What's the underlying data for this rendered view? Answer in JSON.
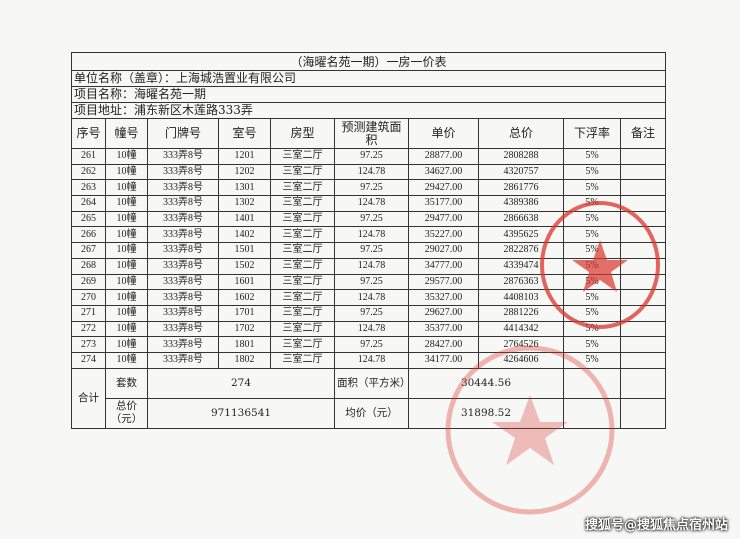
{
  "title": "（海曜名苑一期）一房一价表",
  "company": "单位名称（盖章）：上海城浩置业有限公司",
  "project": "项目名称：海曜名苑一期",
  "address": "项目地址：浦东新区木莲路333弄",
  "headers": [
    "序号",
    "幢号",
    "门牌号",
    "室号",
    "房型",
    "预测建筑面积",
    "单价",
    "总价",
    "下浮率",
    "备注"
  ],
  "rows": [
    [
      "261",
      "10幢",
      "333弄8号",
      "1201",
      "三室二厅",
      "97.25",
      "28877.00",
      "2808288",
      "5%",
      ""
    ],
    [
      "262",
      "10幢",
      "333弄8号",
      "1202",
      "三室二厅",
      "124.78",
      "34627.00",
      "4320757",
      "5%",
      ""
    ],
    [
      "263",
      "10幢",
      "333弄8号",
      "1301",
      "三室二厅",
      "97.25",
      "29427.00",
      "2861776",
      "5%",
      ""
    ],
    [
      "264",
      "10幢",
      "333弄8号",
      "1302",
      "三室二厅",
      "124.78",
      "35177.00",
      "4389386",
      "5%",
      ""
    ],
    [
      "265",
      "10幢",
      "333弄8号",
      "1401",
      "三室二厅",
      "97.25",
      "29477.00",
      "2866638",
      "5%",
      ""
    ],
    [
      "266",
      "10幢",
      "333弄8号",
      "1402",
      "三室二厅",
      "124.78",
      "35227.00",
      "4395625",
      "5%",
      ""
    ],
    [
      "267",
      "10幢",
      "333弄8号",
      "1501",
      "三室二厅",
      "97.25",
      "29027.00",
      "2822876",
      "5%",
      ""
    ],
    [
      "268",
      "10幢",
      "333弄8号",
      "1502",
      "三室二厅",
      "124.78",
      "34777.00",
      "4339474",
      "5%",
      ""
    ],
    [
      "269",
      "10幢",
      "333弄8号",
      "1601",
      "三室二厅",
      "97.25",
      "29577.00",
      "2876363",
      "5%",
      ""
    ],
    [
      "270",
      "10幢",
      "333弄8号",
      "1602",
      "三室二厅",
      "124.78",
      "35327.00",
      "4408103",
      "5%",
      ""
    ],
    [
      "271",
      "10幢",
      "333弄8号",
      "1701",
      "三室二厅",
      "97.25",
      "29627.00",
      "2881226",
      "5%",
      ""
    ],
    [
      "272",
      "10幢",
      "333弄8号",
      "1702",
      "三室二厅",
      "124.78",
      "35377.00",
      "4414342",
      "5%",
      ""
    ],
    [
      "273",
      "10幢",
      "333弄8号",
      "1801",
      "三室二厅",
      "97.25",
      "28427.00",
      "2764526",
      "5%",
      ""
    ],
    [
      "274",
      "10幢",
      "333弄8号",
      "1802",
      "三室二厅",
      "124.78",
      "34177.00",
      "4264606",
      "5%",
      ""
    ]
  ],
  "summary": {
    "total_label": "合计",
    "count_label": "套数",
    "count": "274",
    "area_label": "面积（平方米）",
    "area": "30444.56",
    "price_label": "总价（元）",
    "price": "971136541",
    "avg_label": "均价（元）",
    "avg": "31898.52"
  },
  "watermark": "搜狐号@搜狐焦点宿州站",
  "colors": {
    "stamp": "#d9342b"
  }
}
